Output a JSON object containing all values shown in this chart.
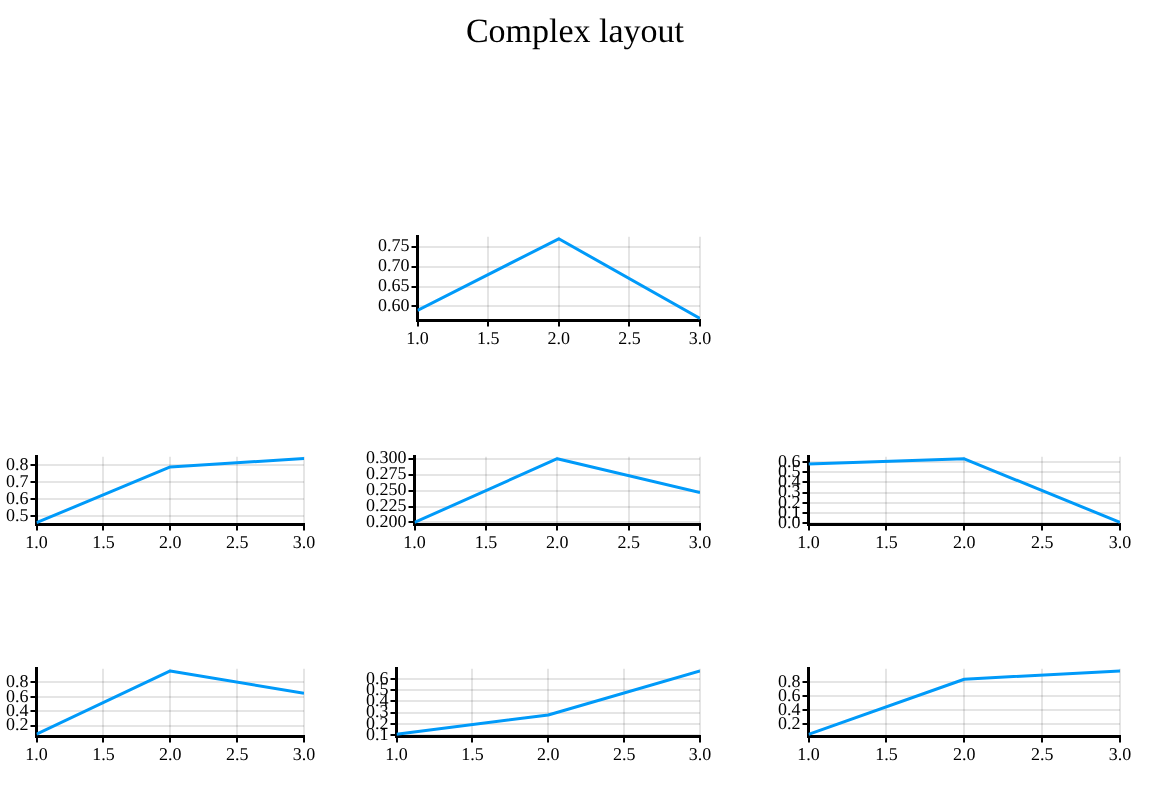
{
  "chart_data": [
    {
      "type": "line",
      "title": "Complex layout",
      "x": [
        1,
        2,
        3
      ],
      "series": [
        {
          "color": "#009af9",
          "values": [
            0.59,
            0.77,
            0.57
          ]
        }
      ],
      "xlim": [
        1,
        3
      ],
      "xticks": [
        {
          "value": 1,
          "label": "1.0"
        },
        {
          "value": 1.5,
          "label": "1.5"
        },
        {
          "value": 2,
          "label": "2.0"
        },
        {
          "value": 2.5,
          "label": "2.5"
        },
        {
          "value": 3,
          "label": "3.0"
        }
      ],
      "ylim": [
        0.565,
        0.775
      ],
      "yticks": [
        {
          "value": 0.6,
          "label": "0.60"
        },
        0.65,
        {
          "value": 0.7,
          "label": "0.70"
        },
        0.75
      ],
      "grid": true,
      "legend": false
    },
    {
      "type": "line",
      "x": [
        1,
        2,
        3
      ],
      "series": [
        {
          "color": "#009af9",
          "values": [
            0.46,
            0.79,
            0.84
          ]
        }
      ],
      "xlim": [
        1,
        3
      ],
      "xticks": [
        {
          "value": 1,
          "label": "1.0"
        },
        {
          "value": 1.5,
          "label": "1.5"
        },
        {
          "value": 2,
          "label": "2.0"
        },
        {
          "value": 2.5,
          "label": "2.5"
        },
        {
          "value": 3,
          "label": "3.0"
        }
      ],
      "ylim": [
        0.45,
        0.85
      ],
      "yticks": [
        0.5,
        0.6,
        0.7,
        0.8
      ],
      "grid": true,
      "legend": false
    },
    {
      "type": "line",
      "x": [
        1,
        2,
        3
      ],
      "series": [
        {
          "color": "#009af9",
          "values": [
            0.2,
            0.3,
            0.247
          ]
        }
      ],
      "xlim": [
        1,
        3
      ],
      "xticks": [
        {
          "value": 1,
          "label": "1.0"
        },
        {
          "value": 1.5,
          "label": "1.5"
        },
        {
          "value": 2,
          "label": "2.0"
        },
        {
          "value": 2.5,
          "label": "2.5"
        },
        {
          "value": 3,
          "label": "3.0"
        }
      ],
      "ylim": [
        0.197,
        0.303
      ],
      "yticks": [
        {
          "value": 0.2,
          "label": "0.200"
        },
        0.225,
        {
          "value": 0.25,
          "label": "0.250"
        },
        0.275,
        {
          "value": 0.3,
          "label": "0.300"
        }
      ],
      "grid": true,
      "legend": false
    },
    {
      "type": "line",
      "x": [
        1,
        2,
        3
      ],
      "series": [
        {
          "color": "#009af9",
          "values": [
            0.58,
            0.63,
            0.01
          ]
        }
      ],
      "xlim": [
        1,
        3
      ],
      "xticks": [
        {
          "value": 1,
          "label": "1.0"
        },
        {
          "value": 1.5,
          "label": "1.5"
        },
        {
          "value": 2,
          "label": "2.0"
        },
        {
          "value": 2.5,
          "label": "2.5"
        },
        {
          "value": 3,
          "label": "3.0"
        }
      ],
      "ylim": [
        -0.01,
        0.65
      ],
      "yticks": [
        {
          "value": 0,
          "label": "0.0"
        },
        0.1,
        0.2,
        0.3,
        0.4,
        0.5,
        0.6
      ],
      "grid": true,
      "legend": false
    },
    {
      "type": "line",
      "x": [
        1,
        2,
        3
      ],
      "series": [
        {
          "color": "#009af9",
          "values": [
            0.08,
            0.96,
            0.65
          ]
        }
      ],
      "xlim": [
        1,
        3
      ],
      "xticks": [
        {
          "value": 1,
          "label": "1.0"
        },
        {
          "value": 1.5,
          "label": "1.5"
        },
        {
          "value": 2,
          "label": "2.0"
        },
        {
          "value": 2.5,
          "label": "2.5"
        },
        {
          "value": 3,
          "label": "3.0"
        }
      ],
      "ylim": [
        0.05,
        0.99
      ],
      "yticks": [
        0.2,
        0.4,
        0.6,
        0.8
      ],
      "grid": true,
      "legend": false
    },
    {
      "type": "line",
      "x": [
        1,
        2,
        3
      ],
      "series": [
        {
          "color": "#009af9",
          "values": [
            0.11,
            0.28,
            0.67
          ]
        }
      ],
      "xlim": [
        1,
        3
      ],
      "xticks": [
        {
          "value": 1,
          "label": "1.0"
        },
        {
          "value": 1.5,
          "label": "1.5"
        },
        {
          "value": 2,
          "label": "2.0"
        },
        {
          "value": 2.5,
          "label": "2.5"
        },
        {
          "value": 3,
          "label": "3.0"
        }
      ],
      "ylim": [
        0.09,
        0.69
      ],
      "yticks": [
        0.1,
        0.2,
        0.3,
        0.4,
        0.5,
        0.6
      ],
      "grid": true,
      "legend": false
    },
    {
      "type": "line",
      "x": [
        1,
        2,
        3
      ],
      "series": [
        {
          "color": "#009af9",
          "values": [
            0.05,
            0.84,
            0.96
          ]
        }
      ],
      "xlim": [
        1,
        3
      ],
      "xticks": [
        {
          "value": 1,
          "label": "1.0"
        },
        {
          "value": 1.5,
          "label": "1.5"
        },
        {
          "value": 2,
          "label": "2.0"
        },
        {
          "value": 2.5,
          "label": "2.5"
        },
        {
          "value": 3,
          "label": "3.0"
        }
      ],
      "ylim": [
        0.02,
        0.99
      ],
      "yticks": [
        0.2,
        0.4,
        0.6,
        0.8
      ],
      "grid": true,
      "legend": false
    }
  ]
}
